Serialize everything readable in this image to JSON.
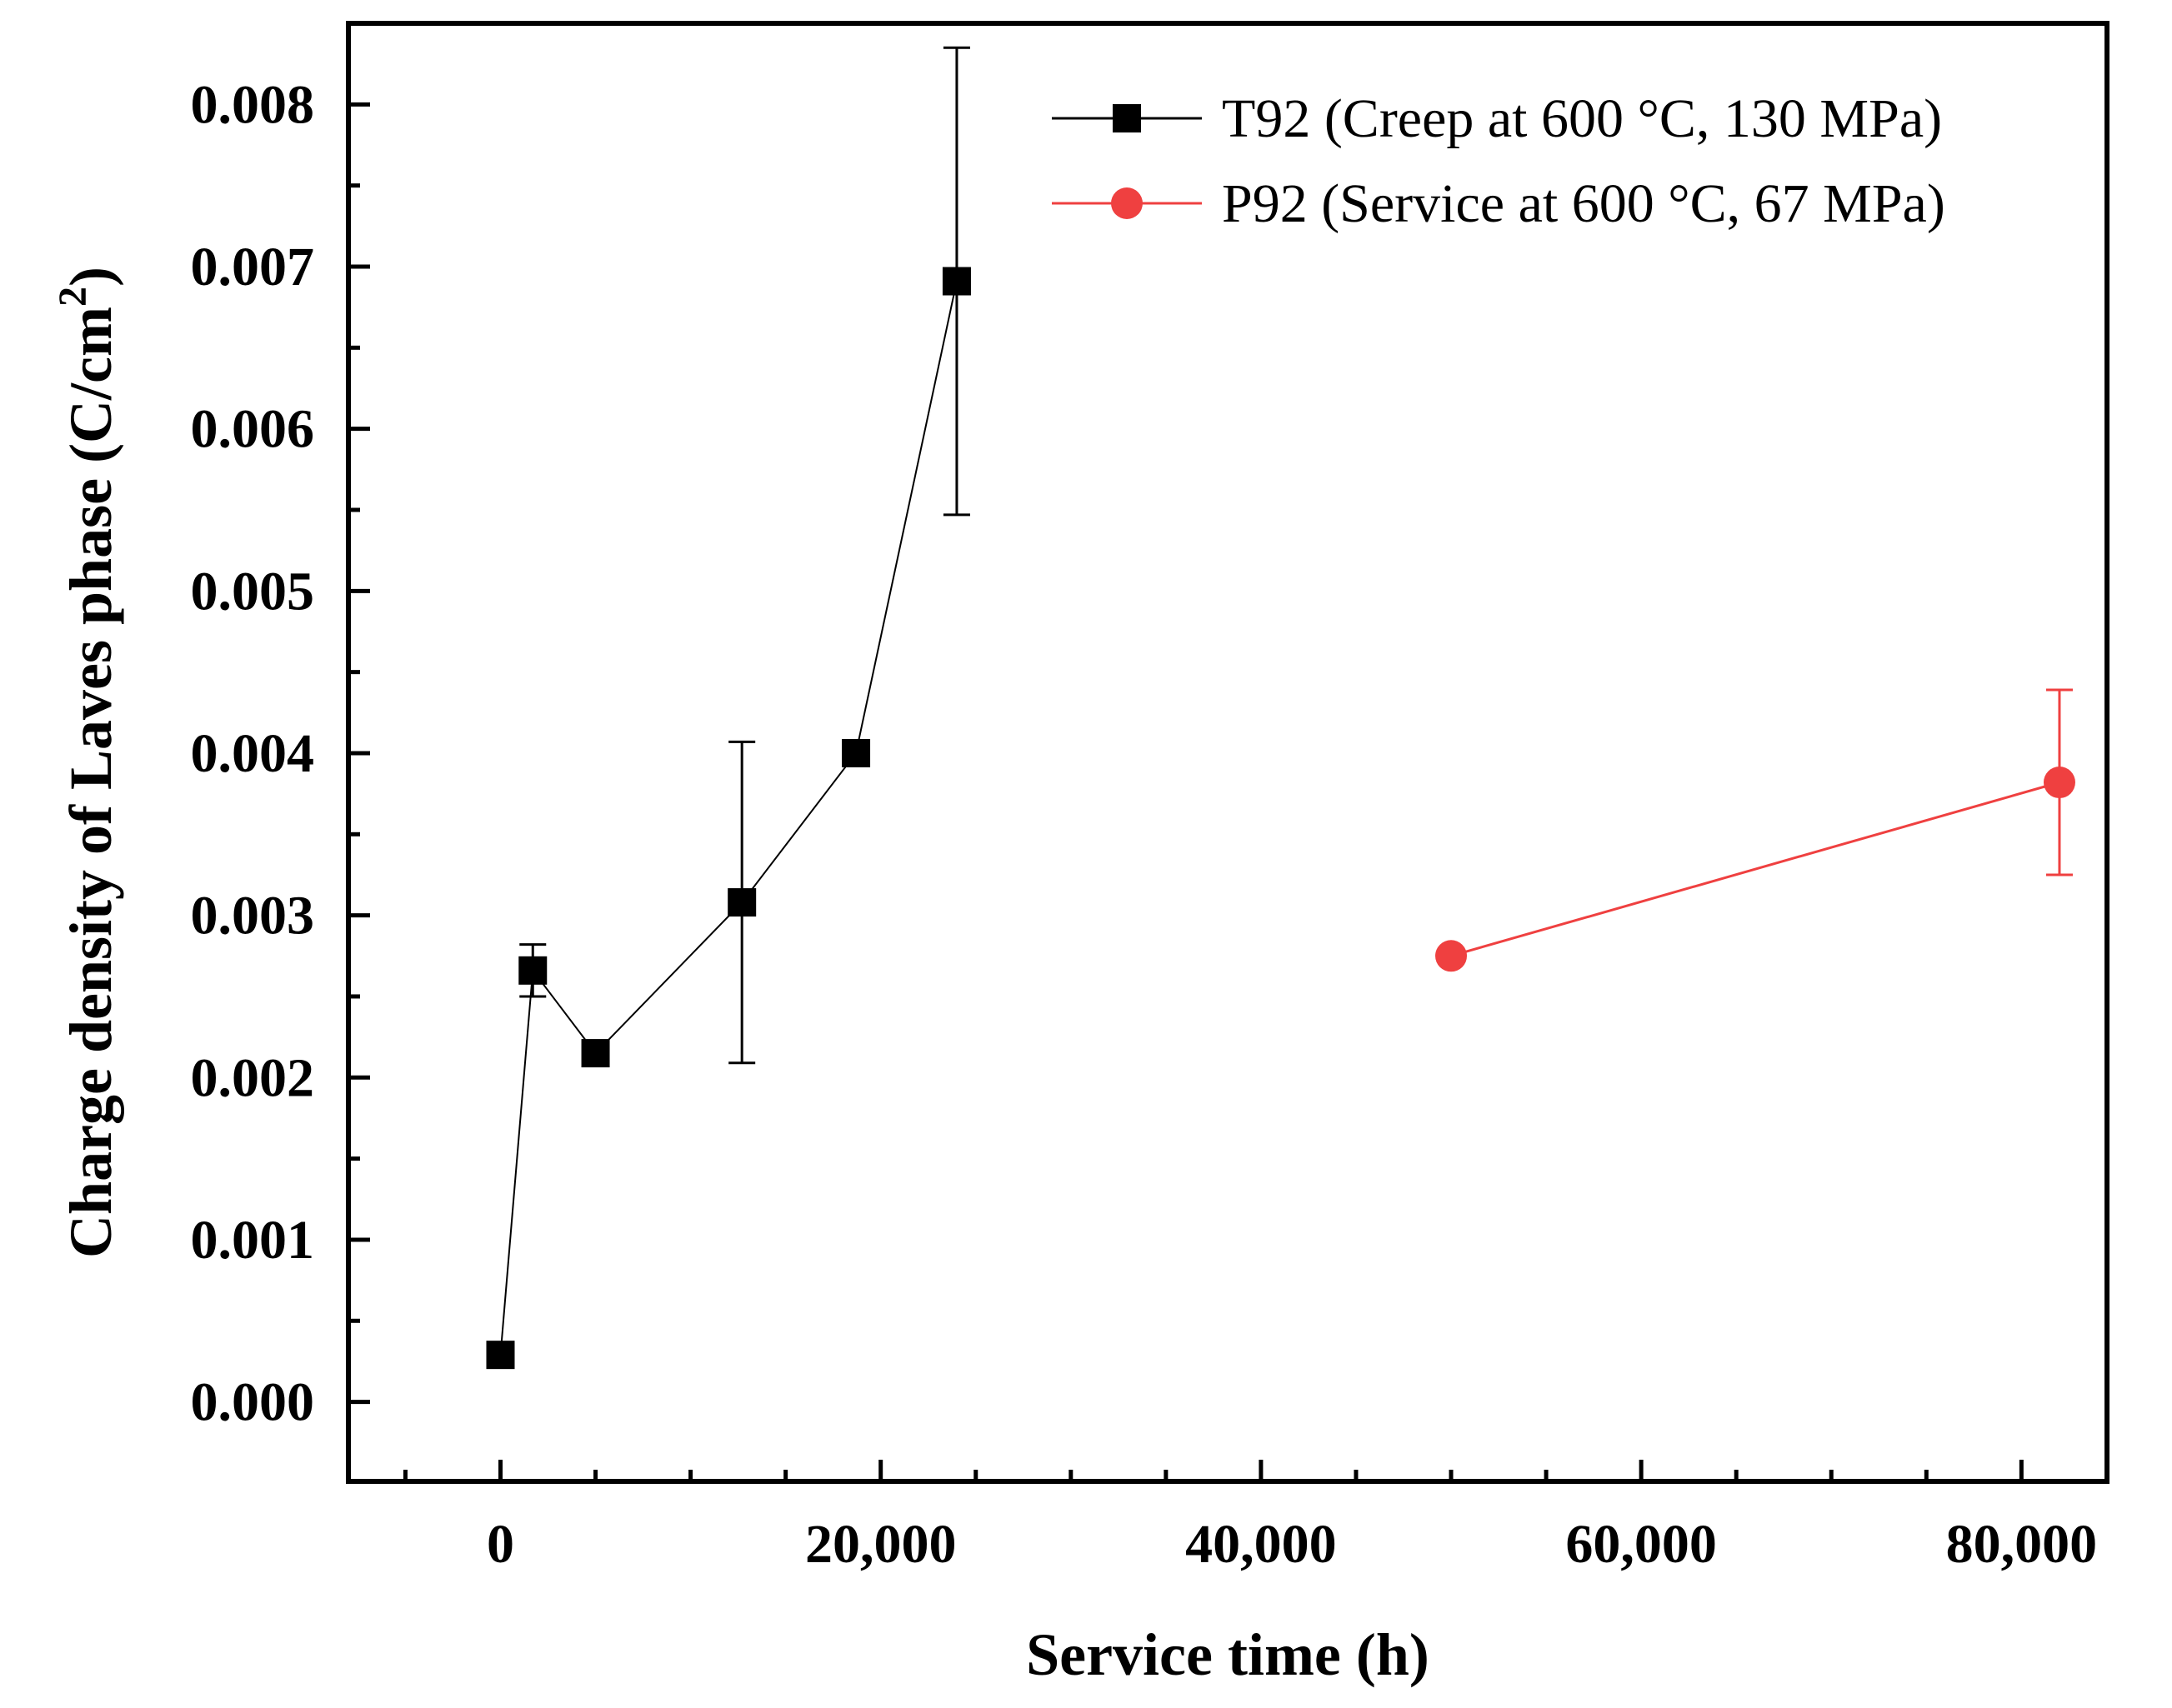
{
  "chart_data": {
    "type": "scatter",
    "title": "",
    "xlabel": "Service time (h)",
    "ylabel": "Charge density of Laves phase (C/cm",
    "ylabel_sup": "2",
    "ylabel_close": ")",
    "xlim": [
      -8000,
      84500
    ],
    "ylim": [
      -0.00049,
      0.0085
    ],
    "x_ticks": [
      0,
      20000,
      40000,
      60000,
      80000
    ],
    "x_tick_labels": [
      "0",
      "20,000",
      "40,000",
      "60,000",
      "80,000"
    ],
    "y_ticks": [
      0.0,
      0.001,
      0.002,
      0.003,
      0.004,
      0.005,
      0.006,
      0.007,
      0.008
    ],
    "y_tick_labels": [
      "0.000",
      "0.001",
      "0.002",
      "0.003",
      "0.004",
      "0.005",
      "0.006",
      "0.007",
      "0.008"
    ],
    "legend_position": "top-right",
    "series": [
      {
        "name": "T92 (Creep at 600 °C, 130 MPa)",
        "color": "#000000",
        "marker": "square",
        "x": [
          0,
          1700,
          5000,
          12700,
          18700,
          24000
        ],
        "y": [
          0.00029,
          0.00266,
          0.00215,
          0.00308,
          0.004,
          0.00691
        ],
        "err": [
          0,
          0.00016,
          0,
          0.00099,
          0,
          0.00144
        ]
      },
      {
        "name": "P92 (Service at 600 °C, 67 MPa)",
        "color": "#ef4040",
        "marker": "circle",
        "x": [
          50000,
          82000
        ],
        "y": [
          0.00275,
          0.00382
        ],
        "err": [
          0,
          0.00057
        ]
      }
    ]
  }
}
